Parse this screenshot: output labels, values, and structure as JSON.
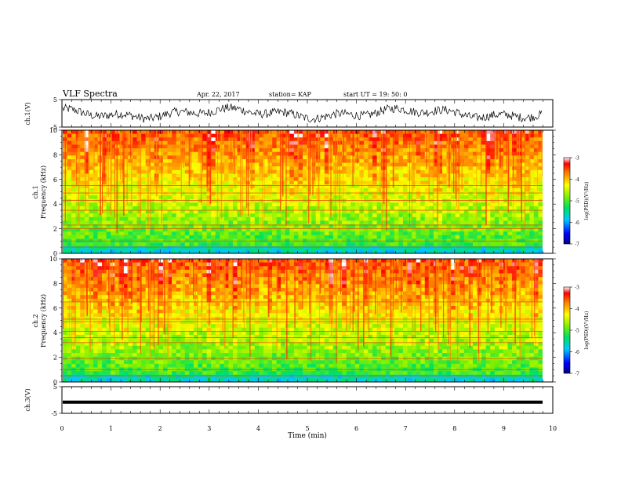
{
  "header": {
    "title": "VLF Spectra",
    "date": "Apr. 22, 2017",
    "station": "station= KAP",
    "start": "start UT =   19: 50: 0"
  },
  "colors": {
    "low": "#0000ff",
    "mid": "#00e000",
    "high": "#ff0000",
    "waveform": "#000000"
  },
  "chart_data": [
    {
      "type": "line",
      "name": "ch1-waveform",
      "ylabel": "ch.1(V)",
      "yticks": [
        "5",
        "-5"
      ],
      "ylim": [
        -5,
        5
      ],
      "xlim": [
        0,
        10
      ]
    },
    {
      "type": "heatmap",
      "name": "ch1-spectrogram",
      "ylabel_top": "ch.1",
      "ylabel": "Frequency (kHz)",
      "yticks": [
        "0",
        "2",
        "4",
        "6",
        "8",
        "10"
      ],
      "ylim": [
        0,
        10
      ],
      "xlim": [
        0,
        10
      ],
      "colorbar": {
        "label": "log(PSD)(V²/Hz)",
        "ticks": [
          "-3",
          "-4",
          "-5",
          "-6",
          "-7"
        ],
        "range": [
          -7,
          -3
        ]
      },
      "bands_khz": [
        0.5,
        1.0,
        2.0,
        2.3,
        3.5,
        4.3,
        4.9,
        5.5
      ]
    },
    {
      "type": "heatmap",
      "name": "ch2-spectrogram",
      "ylabel_top": "ch.2",
      "ylabel": "Frequency (kHz)",
      "yticks": [
        "0",
        "2",
        "4",
        "6",
        "8",
        "10"
      ],
      "ylim": [
        0,
        10
      ],
      "xlim": [
        0,
        10
      ],
      "colorbar": {
        "label": "log(PSD)(V²/Hz)",
        "ticks": [
          "-3",
          "-4",
          "-5",
          "-6",
          "-7"
        ],
        "range": [
          -7,
          -3
        ]
      },
      "bands_khz": [
        0.5,
        1.0,
        1.9,
        3.2,
        3.6,
        4.1,
        4.9,
        5.1,
        6.5
      ]
    },
    {
      "type": "line",
      "name": "ch3-waveform",
      "ylabel": "ch.3(V)",
      "yticks": [
        "5",
        "-5"
      ],
      "ylim": [
        -5,
        5
      ],
      "xlim": [
        0,
        10
      ],
      "level": -0.8
    }
  ],
  "xaxis": {
    "label": "Time (min)",
    "ticks": [
      "0",
      "1",
      "2",
      "3",
      "4",
      "5",
      "6",
      "7",
      "8",
      "9",
      "10"
    ]
  }
}
